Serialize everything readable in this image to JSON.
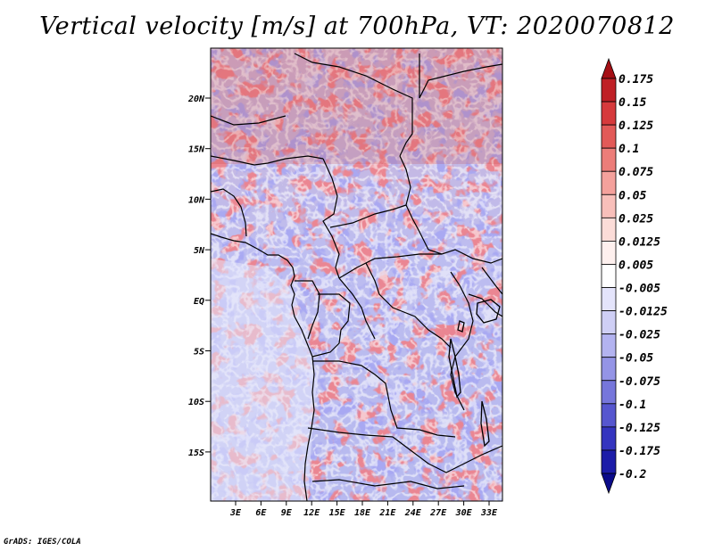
{
  "title": "Vertical velocity [m/s] at 700hPa, VT: 2020070812",
  "credit": "GrADS: IGES/COLA",
  "lat_ticks": [
    "20N",
    "15N",
    "10N",
    "5N",
    "EQ",
    "5S",
    "10S",
    "15S"
  ],
  "lon_ticks": [
    "3E",
    "6E",
    "9E",
    "12E",
    "15E",
    "18E",
    "21E",
    "24E",
    "27E",
    "30E",
    "33E"
  ],
  "colorbar": {
    "labels": [
      "0.175",
      "0.15",
      "0.125",
      "0.1",
      "0.075",
      "0.05",
      "0.025",
      "0.0125",
      "0.005",
      "-0.005",
      "-0.0125",
      "-0.025",
      "-0.05",
      "-0.075",
      "-0.1",
      "-0.125",
      "-0.175",
      "-0.2"
    ],
    "colors": [
      "#a50f15",
      "#bf2026",
      "#d63a3c",
      "#e25a58",
      "#ec7d79",
      "#f4a19c",
      "#f8bfba",
      "#fbdcd8",
      "#fef0ee",
      "#ffffff",
      "#e4e4fb",
      "#cfcff5",
      "#b3b3f0",
      "#9494e6",
      "#7676db",
      "#5656cf",
      "#3434bf",
      "#1c1ca8",
      "#0b0b8a"
    ]
  },
  "map_features": [
    "continent-coastline",
    "country-borders",
    "lake-victoria",
    "lake-tanganyika",
    "lake-malawi"
  ]
}
